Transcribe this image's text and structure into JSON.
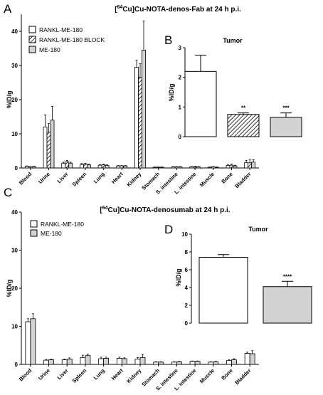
{
  "panels": {
    "A": {
      "label": "A",
      "title_super": "64",
      "title_pre": "[",
      "title_post": "Cu]Cu-NOTA-denos-Fab at 24 h p.i.",
      "ylabel": "%ID/g",
      "ylim": [
        0,
        45
      ],
      "yticks": [
        "0",
        "10",
        "20",
        "30",
        "40"
      ],
      "categories": [
        "Blood",
        "Urine",
        "Liver",
        "Spleen",
        "Lung",
        "Heart",
        "Kidney",
        "Stomach",
        "S. intestine",
        "L. intestine",
        "Muscle",
        "Bone",
        "Bladder"
      ],
      "legend": [
        "RANKL-ME-180",
        "RANKL-ME-180 BLOCK",
        "ME-180"
      ]
    },
    "B": {
      "label": "B",
      "title": "Tumor",
      "ylabel": "%ID/g",
      "ylim": [
        0,
        3
      ],
      "yticks": [
        "0",
        "1",
        "2",
        "3"
      ]
    },
    "C": {
      "label": "C",
      "title_super": "64",
      "title_pre": "[",
      "title_post": "Cu]Cu-NOTA-denosumab at 24 h p.i.",
      "ylabel": "%ID/g",
      "ylim": [
        0,
        40
      ],
      "yticks": [
        "0",
        "10",
        "20",
        "30",
        "40"
      ],
      "categories": [
        "Blood",
        "Urine",
        "Liver",
        "Spleen",
        "Lung",
        "Heart",
        "Kidney",
        "Stomach",
        "S. intestine",
        "L. intestine",
        "Muscle",
        "Bone",
        "Bladder"
      ],
      "legend": [
        "RANKL-ME-180",
        "ME-180"
      ]
    },
    "D": {
      "label": "D",
      "title": "Tumor",
      "ylabel": "%ID/g",
      "ylim": [
        0,
        10
      ],
      "yticks": [
        "0",
        "2",
        "4",
        "6",
        "8",
        "10"
      ]
    }
  },
  "colors": {
    "white_bar": "#ffffff",
    "gray_bar": "#d3d3d3",
    "stroke": "#000000"
  },
  "chart_data": [
    {
      "panel": "A",
      "type": "bar",
      "categories": [
        "Blood",
        "Urine",
        "Liver",
        "Spleen",
        "Lung",
        "Heart",
        "Kidney",
        "Stomach",
        "S. intestine",
        "L. intestine",
        "Muscle",
        "Bone",
        "Bladder"
      ],
      "series": [
        {
          "name": "RANKL-ME-180",
          "fill": "white",
          "values": [
            0.5,
            12,
            1.4,
            1.0,
            0.8,
            0.6,
            29.5,
            0.2,
            0.3,
            0.3,
            0.2,
            0.7,
            1.6
          ],
          "errors": [
            0.1,
            3.5,
            0.3,
            0.3,
            0.2,
            0.1,
            2.0,
            0.1,
            0.1,
            0.1,
            0.1,
            0.3,
            0.6
          ]
        },
        {
          "name": "RANKL-ME-180 BLOCK",
          "fill": "hatch",
          "values": [
            0.3,
            10.5,
            1.8,
            1.1,
            0.9,
            0.6,
            26.5,
            0.2,
            0.3,
            0.4,
            0.3,
            0.8,
            1.5
          ],
          "errors": [
            0.1,
            2.5,
            0.4,
            0.3,
            0.2,
            0.1,
            4.0,
            0.1,
            0.1,
            0.1,
            0.1,
            0.3,
            1.0
          ]
        },
        {
          "name": "ME-180",
          "fill": "gray",
          "values": [
            0.4,
            14,
            1.4,
            0.9,
            0.7,
            0.6,
            34.5,
            0.2,
            0.3,
            0.3,
            0.2,
            0.6,
            1.7
          ],
          "errors": [
            0.1,
            4.0,
            0.3,
            0.2,
            0.2,
            0.1,
            8.5,
            0.1,
            0.1,
            0.1,
            0.1,
            0.2,
            0.7
          ]
        }
      ],
      "ylabel": "%ID/g",
      "ylim": [
        0,
        45
      ]
    },
    {
      "panel": "B",
      "type": "bar",
      "title": "Tumor",
      "categories": [
        "RANKL-ME-180",
        "RANKL-ME-180 BLOCK",
        "ME-180"
      ],
      "values": [
        2.2,
        0.75,
        0.65
      ],
      "errors": [
        0.55,
        0.05,
        0.15
      ],
      "fills": [
        "white",
        "hatch",
        "gray"
      ],
      "significance": [
        "",
        "**",
        "***"
      ],
      "ylabel": "%ID/g",
      "ylim": [
        0,
        3
      ]
    },
    {
      "panel": "C",
      "type": "bar",
      "categories": [
        "Blood",
        "Urine",
        "Liver",
        "Spleen",
        "Lung",
        "Heart",
        "Kidney",
        "Stomach",
        "S. intestine",
        "L. intestine",
        "Muscle",
        "Bone",
        "Bladder"
      ],
      "series": [
        {
          "name": "RANKL-ME-180",
          "fill": "white",
          "values": [
            11.2,
            1.1,
            1.2,
            1.8,
            1.5,
            1.6,
            1.4,
            0.6,
            0.6,
            0.8,
            0.6,
            1.0,
            2.9
          ],
          "errors": [
            0.8,
            0.2,
            0.2,
            0.6,
            0.4,
            0.3,
            0.4,
            0.1,
            0.1,
            0.1,
            0.1,
            0.2,
            0.3
          ]
        },
        {
          "name": "ME-180",
          "fill": "gray",
          "values": [
            12.0,
            1.2,
            1.4,
            2.3,
            1.6,
            1.5,
            1.8,
            0.6,
            0.7,
            0.8,
            0.7,
            1.2,
            2.8
          ],
          "errors": [
            1.3,
            0.2,
            0.3,
            0.4,
            0.3,
            0.2,
            0.8,
            0.1,
            0.1,
            0.1,
            0.1,
            0.3,
            0.8
          ]
        }
      ],
      "ylabel": "%ID/g",
      "ylim": [
        0,
        40
      ]
    },
    {
      "panel": "D",
      "type": "bar",
      "title": "Tumor",
      "categories": [
        "RANKL-ME-180",
        "ME-180"
      ],
      "values": [
        7.4,
        4.1
      ],
      "errors": [
        0.3,
        0.6
      ],
      "fills": [
        "white",
        "gray"
      ],
      "significance": [
        "",
        "****"
      ],
      "ylabel": "%ID/g",
      "ylim": [
        0,
        10
      ]
    }
  ]
}
